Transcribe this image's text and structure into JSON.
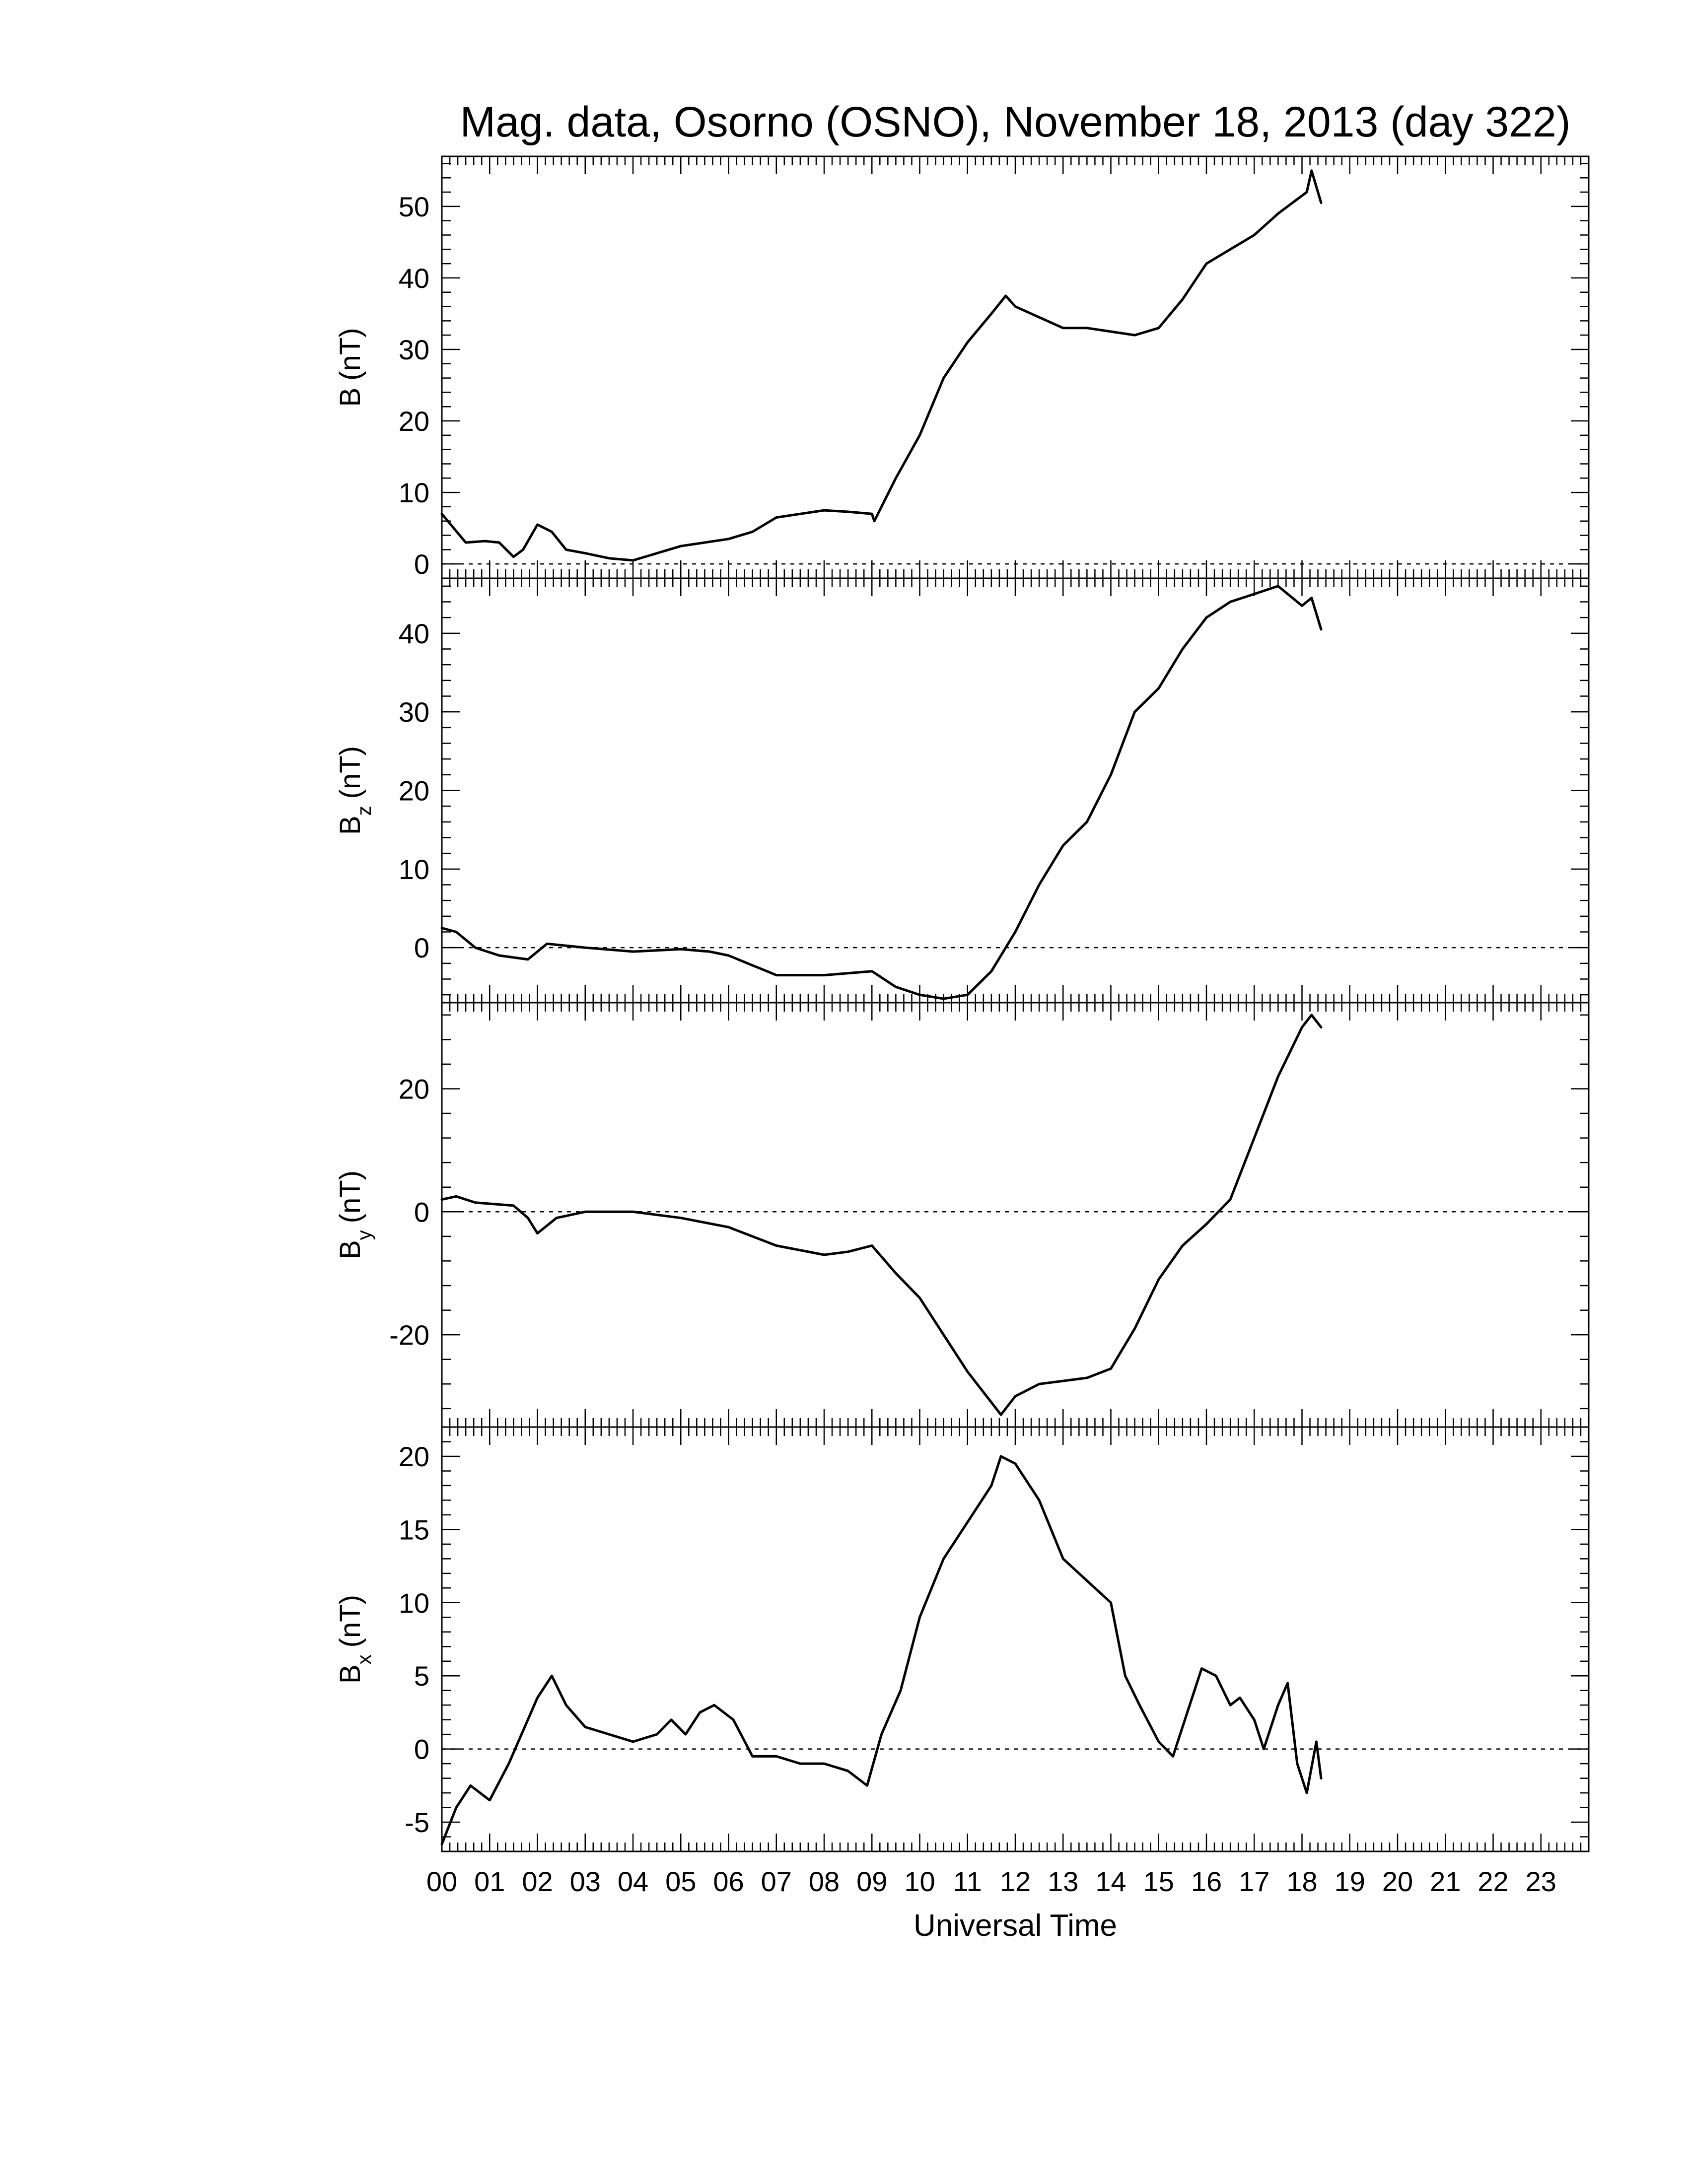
{
  "chart_data": {
    "type": "line",
    "title": "Mag. data, Osorno (OSNO), November 18, 2013 (day 322)",
    "xlabel": "Universal Time",
    "xlim": [
      0,
      24
    ],
    "x_ticks": [
      "00",
      "01",
      "02",
      "03",
      "04",
      "05",
      "06",
      "07",
      "08",
      "09",
      "10",
      "11",
      "12",
      "13",
      "14",
      "15",
      "16",
      "17",
      "18",
      "19",
      "20",
      "21",
      "22",
      "23"
    ],
    "grid": false,
    "legend": "none",
    "line_color": "#000000",
    "panels": [
      {
        "ylabel_main": "B",
        "ylabel_sub": "",
        "ylabel_unit": "(nT)",
        "ylim": [
          -2,
          57
        ],
        "y_ticks": [
          0,
          10,
          20,
          30,
          40,
          50
        ],
        "y_tick_labels": [
          "0",
          "10",
          "20",
          "30",
          "40",
          "50"
        ],
        "zero_line": true,
        "series": [
          {
            "x": [
              0,
              0.5,
              0.9,
              1.2,
              1.5,
              1.7,
              2.0,
              2.3,
              2.6,
              3.0,
              3.5,
              4.0,
              4.5,
              5.0,
              5.5,
              6.0,
              6.5,
              7.0,
              7.5,
              8.0,
              8.5,
              9.0,
              9.05,
              9.5,
              10.0,
              10.5,
              11.0,
              11.5,
              11.8,
              12.0,
              12.5,
              13.0,
              13.5,
              14.0,
              14.5,
              15.0,
              15.5,
              16.0,
              16.5,
              17.0,
              17.5,
              18.0,
              18.1,
              18.2,
              18.4
            ],
            "y": [
              7,
              3,
              3.2,
              3,
              1,
              2,
              5.5,
              4.5,
              2,
              1.5,
              0.8,
              0.5,
              1.5,
              2.5,
              3,
              3.5,
              4.5,
              6.5,
              7,
              7.5,
              7.3,
              7,
              6,
              12,
              18,
              26,
              31,
              35,
              37.5,
              36,
              34.5,
              33,
              33,
              32.5,
              32,
              33,
              37,
              42,
              44,
              46,
              49,
              51.5,
              52,
              55,
              50.5
            ]
          }
        ]
      },
      {
        "ylabel_main": "B",
        "ylabel_sub": "z",
        "ylabel_unit": "(nT)",
        "ylim": [
          -7,
          47
        ],
        "y_ticks": [
          0,
          10,
          20,
          30,
          40
        ],
        "y_tick_labels": [
          "0",
          "10",
          "20",
          "30",
          "40"
        ],
        "zero_line": true,
        "series": [
          {
            "x": [
              0,
              0.3,
              0.7,
              1.2,
              1.8,
              2.2,
              3.0,
              4.0,
              5.0,
              5.6,
              6.0,
              7.0,
              8.0,
              9.0,
              9.5,
              10.0,
              10.5,
              11.0,
              11.5,
              12.0,
              12.5,
              13.0,
              13.5,
              14.0,
              14.5,
              15.0,
              15.5,
              16.0,
              16.5,
              17.0,
              17.5,
              17.8,
              18.0,
              18.2,
              18.4
            ],
            "y": [
              2.5,
              2,
              0,
              -1,
              -1.5,
              0.5,
              0,
              -0.5,
              -0.2,
              -0.5,
              -1,
              -3.5,
              -3.5,
              -3,
              -5,
              -6,
              -6.5,
              -6,
              -3,
              2,
              8,
              13,
              16,
              22,
              30,
              33,
              38,
              42,
              44,
              45,
              46,
              44.5,
              43.5,
              44.5,
              40.5
            ]
          }
        ]
      },
      {
        "ylabel_main": "B",
        "ylabel_sub": "y",
        "ylabel_unit": "(nT)",
        "ylim": [
          -35,
          34
        ],
        "y_ticks": [
          -20,
          0,
          20
        ],
        "y_tick_labels": [
          "-20",
          "0",
          "20"
        ],
        "zero_line": true,
        "series": [
          {
            "x": [
              0,
              0.3,
              0.7,
              1.5,
              1.8,
              2.0,
              2.4,
              3.0,
              4.0,
              5.0,
              6.0,
              7.0,
              8.0,
              8.5,
              9.0,
              9.5,
              10.0,
              10.5,
              11.0,
              11.5,
              11.7,
              12.0,
              12.5,
              13.0,
              13.5,
              14.0,
              14.5,
              15.0,
              15.5,
              16.0,
              16.5,
              17.0,
              17.5,
              18.0,
              18.2,
              18.4
            ],
            "y": [
              2,
              2.5,
              1.5,
              1,
              -1,
              -3.5,
              -1,
              0,
              0,
              -1,
              -2.5,
              -5.5,
              -7,
              -6.5,
              -5.5,
              -10,
              -14,
              -20,
              -26,
              -31,
              -33,
              -30,
              -28,
              -27.5,
              -27,
              -25.5,
              -19,
              -11,
              -5.5,
              -2,
              2,
              12,
              22,
              30,
              32,
              30
            ]
          }
        ]
      },
      {
        "ylabel_main": "B",
        "ylabel_sub": "x",
        "ylabel_unit": "(nT)",
        "ylim": [
          -7,
          22
        ],
        "y_ticks": [
          -5,
          0,
          5,
          10,
          15,
          20
        ],
        "y_tick_labels": [
          "-5",
          "0",
          "5",
          "10",
          "15",
          "20"
        ],
        "zero_line": true,
        "series": [
          {
            "x": [
              0,
              0.3,
              0.6,
              1.0,
              1.4,
              1.6,
              2.0,
              2.3,
              2.6,
              3.0,
              3.5,
              4.0,
              4.5,
              4.8,
              5.1,
              5.4,
              5.7,
              6.1,
              6.5,
              7.0,
              7.5,
              8.0,
              8.5,
              8.9,
              9.2,
              9.6,
              10.0,
              10.5,
              11.0,
              11.5,
              11.7,
              12.0,
              12.5,
              13.0,
              13.5,
              14.0,
              14.3,
              14.6,
              15.0,
              15.3,
              15.6,
              15.9,
              16.2,
              16.5,
              16.7,
              17.0,
              17.2,
              17.5,
              17.7,
              17.9,
              18.1,
              18.3,
              18.4
            ],
            "y": [
              -6.5,
              -4,
              -2.5,
              -3.5,
              -1,
              0.5,
              3.5,
              5,
              3,
              1.5,
              1,
              0.5,
              1,
              2,
              1,
              2.5,
              3,
              2,
              -0.5,
              -0.5,
              -1,
              -1,
              -1.5,
              -2.5,
              1,
              4,
              9,
              13,
              15.5,
              18,
              20,
              19.5,
              17,
              13,
              11.5,
              10,
              5,
              3,
              0.5,
              -0.5,
              2.5,
              5.5,
              5,
              3,
              3.5,
              2,
              0,
              3,
              4.5,
              -1,
              -3,
              0.5,
              -2
            ]
          }
        ]
      }
    ]
  }
}
